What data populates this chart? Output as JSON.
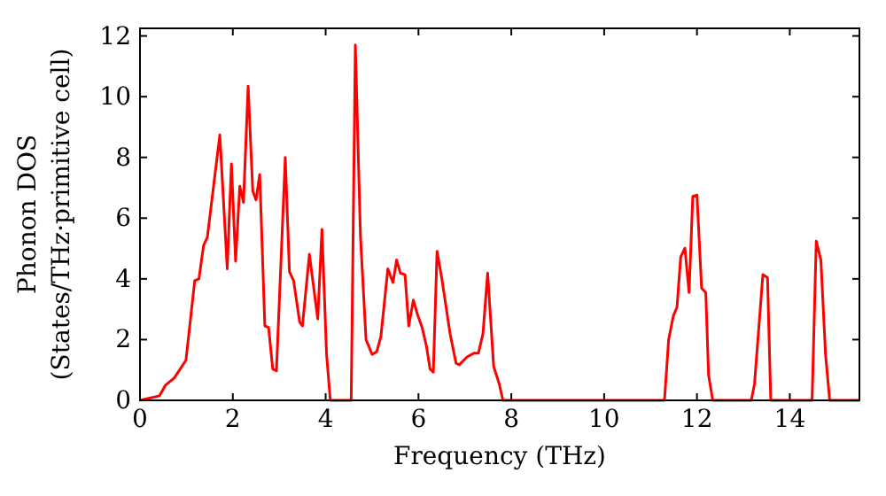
{
  "chart_data": {
    "type": "line",
    "xlabel": "Frequency (THz)",
    "ylabel": "Phonon DOS\n(States/THz·primitive cell)",
    "xlim": [
      0,
      15.5
    ],
    "ylim": [
      0,
      12.25
    ],
    "xticks": [
      0,
      2,
      4,
      6,
      8,
      10,
      12,
      14
    ],
    "yticks": [
      0,
      2,
      4,
      6,
      8,
      10,
      12
    ],
    "grid": false,
    "marker": "none",
    "line_style": "solid",
    "series": [
      {
        "color": "#ff0000",
        "x": [
          0,
          0.42,
          0.55,
          0.74,
          0.99,
          1.18,
          1.27,
          1.37,
          1.45,
          1.72,
          1.88,
          1.97,
          2.06,
          2.15,
          2.23,
          2.33,
          2.43,
          2.5,
          2.58,
          2.69,
          2.77,
          2.86,
          2.94,
          3.13,
          3.22,
          3.31,
          3.44,
          3.5,
          3.65,
          3.83,
          3.92,
          4.02,
          4.1,
          4.55,
          4.64,
          4.75,
          4.87,
          5.0,
          5.1,
          5.19,
          5.34,
          5.45,
          5.53,
          5.61,
          5.71,
          5.79,
          5.89,
          5.98,
          6.08,
          6.17,
          6.25,
          6.32,
          6.4,
          6.5,
          6.68,
          6.81,
          6.88,
          7.04,
          7.19,
          7.29,
          7.39,
          7.49,
          7.62,
          7.74,
          7.82,
          11.3,
          11.39,
          11.49,
          11.57,
          11.65,
          11.74,
          11.83,
          11.91,
          12.0,
          12.1,
          12.19,
          12.25,
          12.34,
          13.17,
          13.24,
          13.42,
          13.52,
          13.59,
          14.48,
          14.57,
          14.67,
          14.77,
          14.86,
          15.5
        ],
        "values": [
          0,
          0.15,
          0.5,
          0.74,
          1.32,
          3.94,
          4.0,
          5.1,
          5.36,
          8.74,
          4.33,
          7.79,
          4.58,
          7.05,
          6.52,
          10.35,
          6.89,
          6.6,
          7.44,
          2.45,
          2.4,
          1.03,
          0.97,
          8.0,
          4.23,
          3.94,
          2.58,
          2.45,
          4.81,
          2.68,
          5.63,
          1.51,
          0,
          0,
          11.7,
          5.4,
          2.0,
          1.51,
          1.6,
          2.1,
          4.33,
          3.88,
          4.62,
          4.19,
          4.14,
          2.45,
          3.3,
          2.82,
          2.39,
          1.8,
          1.03,
          0.93,
          4.91,
          4.04,
          2.2,
          1.22,
          1.17,
          1.42,
          1.55,
          1.55,
          2.2,
          4.19,
          1.12,
          0.54,
          0,
          0,
          2.0,
          2.78,
          3.07,
          4.72,
          5.01,
          3.55,
          6.72,
          6.76,
          3.69,
          3.55,
          0.83,
          0,
          0,
          0.54,
          4.14,
          4.04,
          0,
          0,
          5.24,
          4.62,
          1.51,
          0,
          0
        ]
      }
    ]
  }
}
